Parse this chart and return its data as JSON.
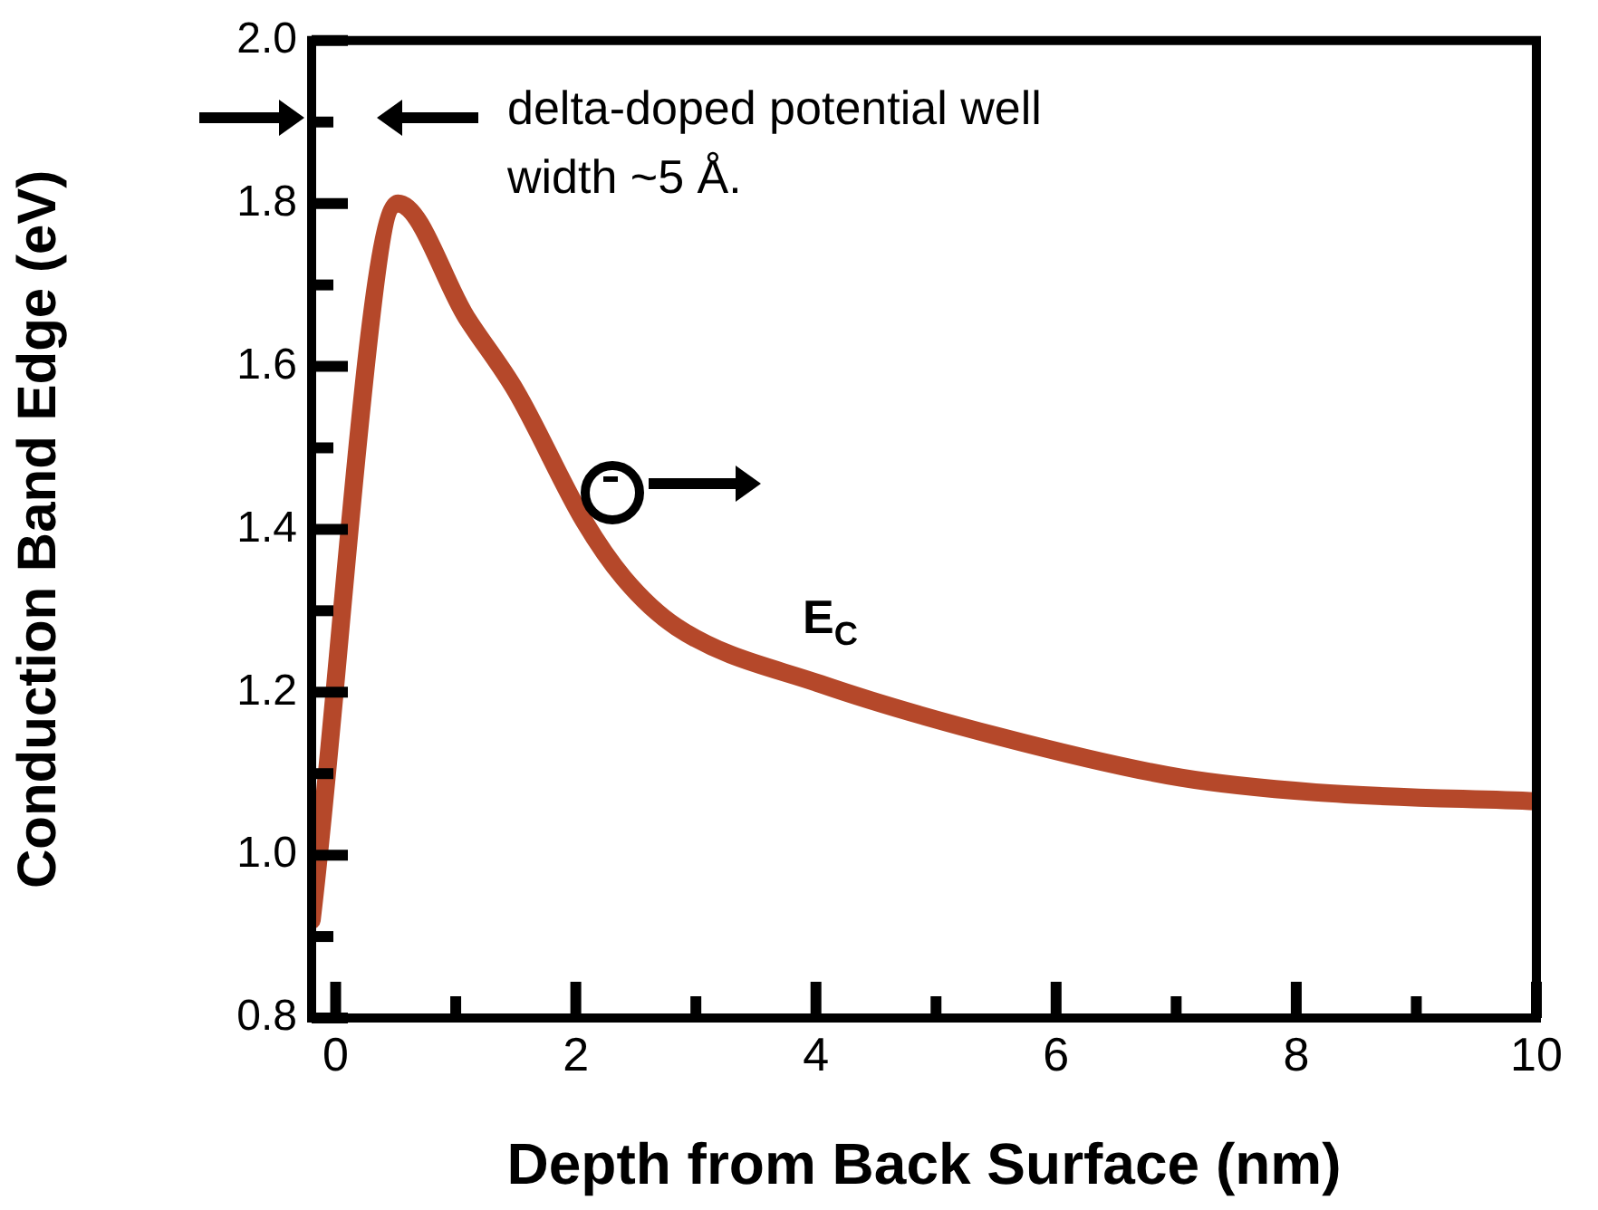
{
  "chart_data": {
    "type": "line",
    "xlabel": "Depth from Back Surface (nm)",
    "ylabel": "Conduction Band Edge (eV)",
    "xlim": [
      -0.2,
      10
    ],
    "xticks": [
      0,
      {
        "value": 1,
        "label": null
      },
      2,
      {
        "value": 3,
        "label": null
      },
      4,
      {
        "value": 5,
        "label": null
      },
      6,
      {
        "value": 7,
        "label": null
      },
      8,
      {
        "value": 9,
        "label": null
      },
      10
    ],
    "ylim": [
      0.8,
      2.0
    ],
    "yticks": [
      {
        "value": 0.8,
        "label": "0.8"
      },
      {
        "value": 0.9,
        "label": null
      },
      {
        "value": 1.0,
        "label": "1.0"
      },
      {
        "value": 1.1,
        "label": null
      },
      {
        "value": 1.2,
        "label": "1.2"
      },
      {
        "value": 1.3,
        "label": null
      },
      {
        "value": 1.4,
        "label": "1.4"
      },
      {
        "value": 1.5,
        "label": null
      },
      {
        "value": 1.6,
        "label": "1.6"
      },
      {
        "value": 1.7,
        "label": null
      },
      {
        "value": 1.8,
        "label": "1.8"
      },
      {
        "value": 1.9,
        "label": null
      },
      {
        "value": 2.0,
        "label": "2.0"
      }
    ],
    "grid": false,
    "legend": false,
    "marker": "none",
    "line_style": "solid",
    "series": [
      {
        "name": "E$_{C}$",
        "color": "#b5482a",
        "x": [
          -0.2,
          0.52,
          1.09,
          1.5,
          2.07,
          2.4,
          2.84,
          4.04,
          5.54,
          7.04,
          8.16,
          10
        ],
        "values": [
          0.92,
          1.8,
          1.66,
          1.57,
          1.41,
          1.34,
          1.28,
          1.21,
          1.145,
          1.095,
          1.077,
          1.066
        ]
      }
    ],
    "annotations": [
      "delta-doped potential well\nwidth ~5 Å."
    ]
  }
}
